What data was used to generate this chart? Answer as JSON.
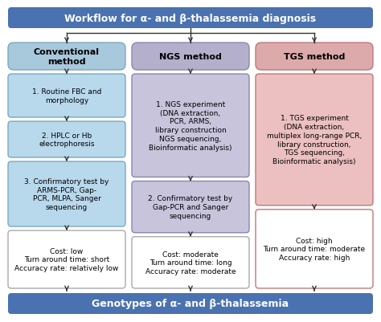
{
  "title_box": {
    "text": "Workflow for α- and β-thalassemia diagnosis",
    "color": "#4A72B0",
    "text_color": "white",
    "fontsize": 9.0,
    "bold": true
  },
  "bottom_box": {
    "text": "Genotypes of α- and β-thalassemia",
    "color": "#4A72B0",
    "text_color": "white",
    "fontsize": 9.0,
    "bold": true
  },
  "columns": [
    {
      "header": {
        "text": "Conventional\nmethod",
        "bg": "#A8C8DC",
        "border": "#7AAABF",
        "fontsize": 8.0,
        "bold": true
      },
      "boxes": [
        {
          "text": "1. Routine FBC and\nmorphology",
          "bg": "#B8D8EC",
          "border": "#7AAABF",
          "fontsize": 6.5
        },
        {
          "text": "2. HPLC or Hb\nelectrophoresis",
          "bg": "#B8D8EC",
          "border": "#7AAABF",
          "fontsize": 6.5
        },
        {
          "text": "3. Confirmatory test by\nARMS-PCR, Gap-\nPCR, MLPA, Sanger\nsequencing",
          "bg": "#B8D8EC",
          "border": "#7AAABF",
          "fontsize": 6.5
        },
        {
          "text": "Cost: low\nTurn around time: short\nAccuracy rate: relatively low",
          "bg": "white",
          "border": "#AAAAAA",
          "fontsize": 6.5
        }
      ],
      "proportions": [
        0.9,
        0.75,
        1.35,
        1.2
      ]
    },
    {
      "header": {
        "text": "NGS method",
        "bg": "#B4B0CC",
        "border": "#8888B0",
        "fontsize": 8.0,
        "bold": true
      },
      "boxes": [
        {
          "text": "1. NGS experiment\n(DNA extraction,\nPCR, ARMS,\nlibrary construction\nNGS sequencing,\nBioinformatic analysis)",
          "bg": "#C8C4DC",
          "border": "#8888B0",
          "fontsize": 6.5
        },
        {
          "text": "2. Confirmatory test by\nGap-PCR and Sanger\nsequencing",
          "bg": "#C8C4DC",
          "border": "#8888B0",
          "fontsize": 6.5
        },
        {
          "text": "Cost: moderate\nTurn around time: long\nAccuracy rate: moderate",
          "bg": "white",
          "border": "#AAAAAA",
          "fontsize": 6.5
        }
      ],
      "proportions": [
        2.2,
        1.1,
        1.1
      ]
    },
    {
      "header": {
        "text": "TGS method",
        "bg": "#DCAAAA",
        "border": "#C07878",
        "fontsize": 8.0,
        "bold": true
      },
      "boxes": [
        {
          "text": "1. TGS experiment\n(DNA extraction,\nmultiplex long-range PCR,\nlibrary construction,\nTGS sequencing,\nBioinformatic analysis)",
          "bg": "#ECC0C0",
          "border": "#C07878",
          "fontsize": 6.5
        },
        {
          "text": "Cost: high\nTurn around time: moderate\nAccuracy rate: high",
          "bg": "white",
          "border": "#C07878",
          "fontsize": 6.5
        }
      ],
      "proportions": [
        2.5,
        1.5
      ]
    }
  ],
  "bg_color": "white",
  "arrow_color": "#333333",
  "line_color": "#333333"
}
